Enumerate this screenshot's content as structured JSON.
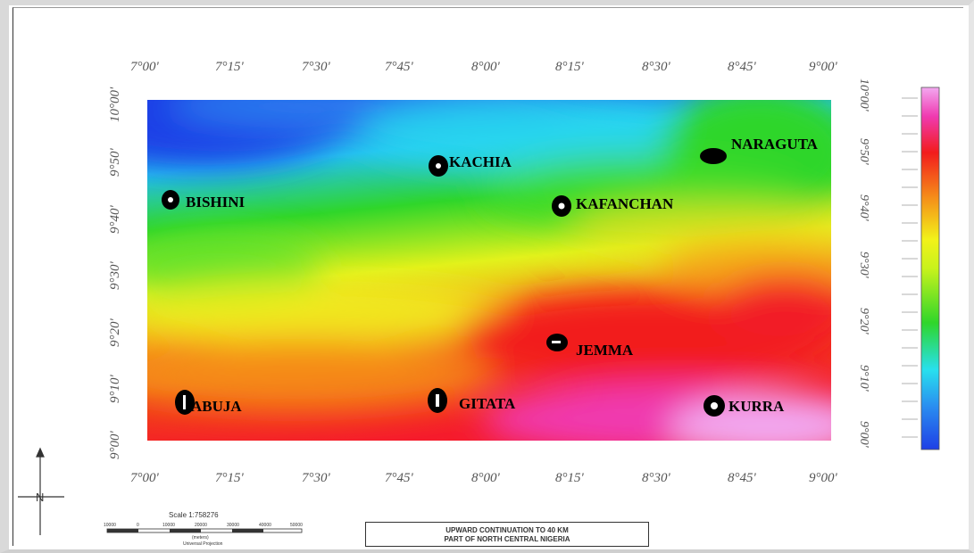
{
  "map": {
    "title_line1": "UPWARD CONTINUATION TO 40 KM",
    "title_line2": "PART OF NORTH CENTRAL NIGERIA",
    "longitude_ticks": [
      "7°00'",
      "7°15'",
      "7°30'",
      "7°45'",
      "8°00'",
      "8°15'",
      "8°30'",
      "8°45'",
      "9°00'"
    ],
    "latitude_ticks": [
      "9°00'",
      "9°10'",
      "9°20'",
      "9°30'",
      "9°40'",
      "9°50'",
      "10°00'"
    ],
    "places": [
      {
        "name": "KACHIA"
      },
      {
        "name": "NARAGUTA"
      },
      {
        "name": "BISHINI"
      },
      {
        "name": "KAFANCHAN"
      },
      {
        "name": "JEMMA"
      },
      {
        "name": "ABUJA"
      },
      {
        "name": "GITATA"
      },
      {
        "name": "KURRA"
      }
    ],
    "scale": {
      "label": "Scale 1:758276",
      "units_caption": "(meters)",
      "projection_caption": "Universal Projection",
      "ticks": [
        "10000",
        "0",
        "10000",
        "20000",
        "30000",
        "40000",
        "50000"
      ]
    },
    "north_arrow": {
      "label": "N"
    },
    "colors": {
      "low": "#2243e0",
      "cyan": "#28e0ee",
      "green": "#2fd62a",
      "yellow": "#f2f21a",
      "orange": "#f58a1a",
      "red": "#f21c1c",
      "magenta": "#f03ab0",
      "high": "#f2a8f0"
    },
    "legend_scale_note": "colour scale (labels illegible)"
  }
}
